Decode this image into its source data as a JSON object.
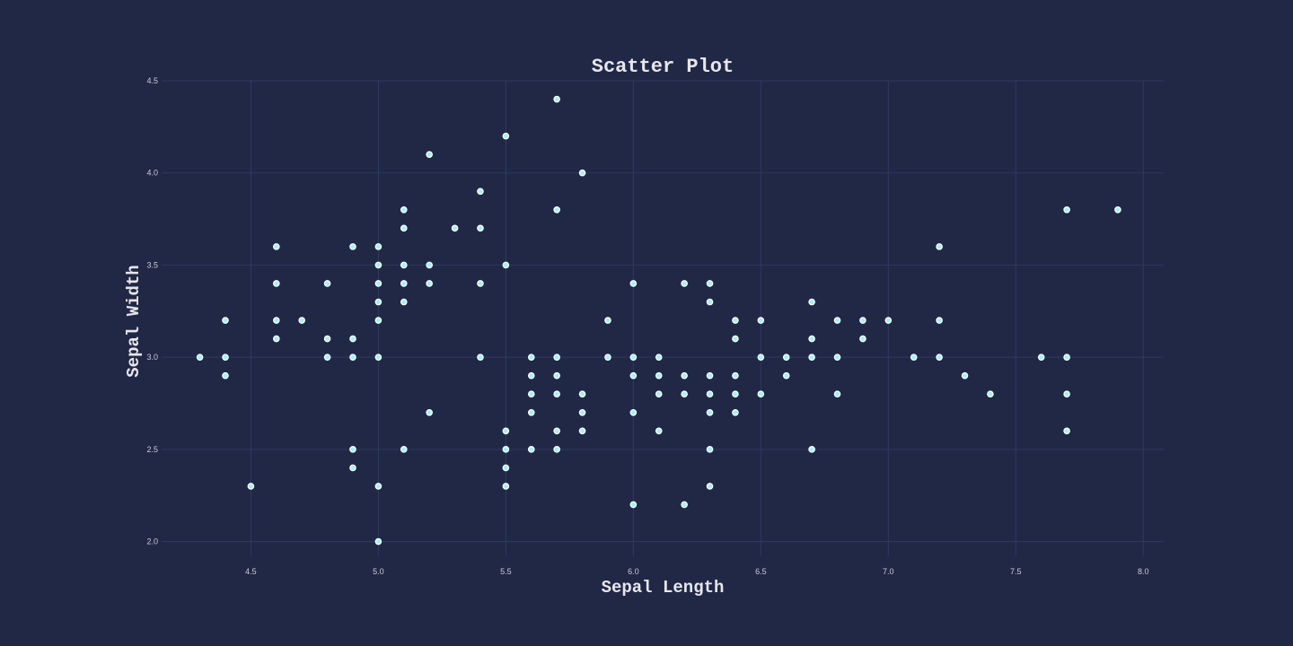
{
  "chart_data": {
    "type": "scatter",
    "title": "Scatter Plot",
    "xlabel": "Sepal Length",
    "ylabel": "Sepal Width",
    "xlim": [
      4.15,
      8.08
    ],
    "ylim": [
      1.92,
      4.5
    ],
    "x_ticks": [
      "4.5",
      "5.0",
      "5.5",
      "6.0",
      "6.5",
      "7.0",
      "7.5",
      "8.0"
    ],
    "y_ticks": [
      "2.0",
      "2.5",
      "3.0",
      "3.5",
      "4.0",
      "4.5"
    ],
    "grid": true,
    "colors": {
      "background": "#212846",
      "grid": "#2f3860",
      "point_fill": "#a8f0f8",
      "point_stroke": "#ffffff",
      "text": "#e6e6ec"
    },
    "points": [
      [
        4.3,
        3.0
      ],
      [
        4.4,
        3.2
      ],
      [
        4.4,
        3.0
      ],
      [
        4.4,
        2.9
      ],
      [
        4.5,
        2.3
      ],
      [
        4.6,
        3.6
      ],
      [
        4.6,
        3.4
      ],
      [
        4.6,
        3.2
      ],
      [
        4.6,
        3.1
      ],
      [
        4.7,
        3.2
      ],
      [
        4.8,
        3.4
      ],
      [
        4.8,
        3.1
      ],
      [
        4.8,
        3.0
      ],
      [
        4.9,
        3.6
      ],
      [
        4.9,
        3.1
      ],
      [
        4.9,
        3.0
      ],
      [
        4.9,
        2.5
      ],
      [
        4.9,
        2.4
      ],
      [
        5.0,
        3.6
      ],
      [
        5.0,
        3.5
      ],
      [
        5.0,
        3.4
      ],
      [
        5.0,
        3.3
      ],
      [
        5.0,
        3.2
      ],
      [
        5.0,
        3.0
      ],
      [
        5.0,
        2.3
      ],
      [
        5.0,
        2.0
      ],
      [
        5.1,
        3.8
      ],
      [
        5.1,
        3.7
      ],
      [
        5.1,
        3.5
      ],
      [
        5.1,
        3.4
      ],
      [
        5.1,
        3.3
      ],
      [
        5.1,
        2.5
      ],
      [
        5.2,
        4.1
      ],
      [
        5.2,
        3.5
      ],
      [
        5.2,
        3.4
      ],
      [
        5.2,
        2.7
      ],
      [
        5.3,
        3.7
      ],
      [
        5.4,
        3.9
      ],
      [
        5.4,
        3.7
      ],
      [
        5.4,
        3.4
      ],
      [
        5.4,
        3.0
      ],
      [
        5.5,
        4.2
      ],
      [
        5.5,
        3.5
      ],
      [
        5.5,
        2.6
      ],
      [
        5.5,
        2.5
      ],
      [
        5.5,
        2.4
      ],
      [
        5.5,
        2.3
      ],
      [
        5.6,
        3.0
      ],
      [
        5.6,
        2.9
      ],
      [
        5.6,
        2.8
      ],
      [
        5.6,
        2.7
      ],
      [
        5.6,
        2.5
      ],
      [
        5.7,
        4.4
      ],
      [
        5.7,
        3.8
      ],
      [
        5.7,
        3.0
      ],
      [
        5.7,
        2.9
      ],
      [
        5.7,
        2.8
      ],
      [
        5.7,
        2.6
      ],
      [
        5.7,
        2.5
      ],
      [
        5.8,
        4.0
      ],
      [
        5.8,
        2.8
      ],
      [
        5.8,
        2.7
      ],
      [
        5.8,
        2.6
      ],
      [
        5.9,
        3.2
      ],
      [
        5.9,
        3.0
      ],
      [
        6.0,
        3.4
      ],
      [
        6.0,
        3.0
      ],
      [
        6.0,
        2.9
      ],
      [
        6.0,
        2.7
      ],
      [
        6.0,
        2.2
      ],
      [
        6.1,
        3.0
      ],
      [
        6.1,
        2.9
      ],
      [
        6.1,
        2.8
      ],
      [
        6.1,
        2.6
      ],
      [
        6.2,
        3.4
      ],
      [
        6.2,
        2.9
      ],
      [
        6.2,
        2.8
      ],
      [
        6.2,
        2.2
      ],
      [
        6.3,
        3.4
      ],
      [
        6.3,
        3.3
      ],
      [
        6.3,
        2.9
      ],
      [
        6.3,
        2.8
      ],
      [
        6.3,
        2.7
      ],
      [
        6.3,
        2.5
      ],
      [
        6.3,
        2.3
      ],
      [
        6.4,
        3.2
      ],
      [
        6.4,
        3.1
      ],
      [
        6.4,
        2.9
      ],
      [
        6.4,
        2.8
      ],
      [
        6.4,
        2.7
      ],
      [
        6.5,
        3.2
      ],
      [
        6.5,
        3.0
      ],
      [
        6.5,
        2.8
      ],
      [
        6.6,
        3.0
      ],
      [
        6.6,
        2.9
      ],
      [
        6.7,
        3.3
      ],
      [
        6.7,
        3.1
      ],
      [
        6.7,
        3.0
      ],
      [
        6.7,
        2.5
      ],
      [
        6.8,
        3.2
      ],
      [
        6.8,
        3.0
      ],
      [
        6.8,
        2.8
      ],
      [
        6.9,
        3.2
      ],
      [
        6.9,
        3.1
      ],
      [
        7.0,
        3.2
      ],
      [
        7.1,
        3.0
      ],
      [
        7.2,
        3.6
      ],
      [
        7.2,
        3.2
      ],
      [
        7.2,
        3.0
      ],
      [
        7.3,
        2.9
      ],
      [
        7.4,
        2.8
      ],
      [
        7.6,
        3.0
      ],
      [
        7.7,
        3.8
      ],
      [
        7.7,
        3.0
      ],
      [
        7.7,
        2.8
      ],
      [
        7.7,
        2.6
      ],
      [
        7.9,
        3.8
      ]
    ]
  }
}
